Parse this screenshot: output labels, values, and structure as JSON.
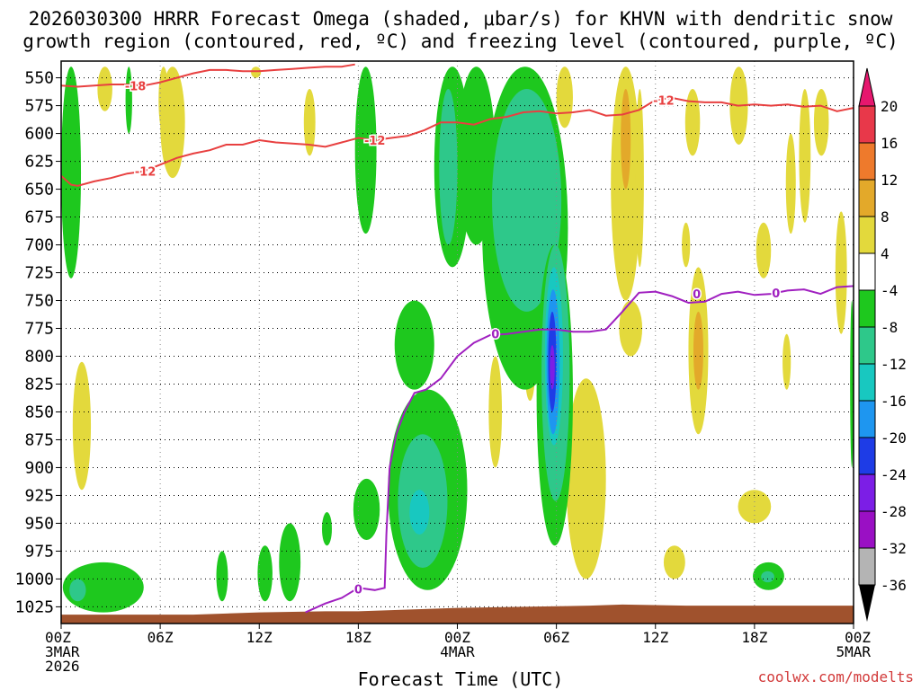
{
  "header": {
    "title_line1": "2026030300 HRRR Forecast Omega (shaded, μbar/s) for KHVN with dendritic snow",
    "title_line2": "growth region (contoured, red, ºC) and freezing level (contoured, purple, ºC)"
  },
  "footer": {
    "xlabel": "Forecast Time (UTC)",
    "credit": "coolwx.com/modelts"
  },
  "chart_data": {
    "type": "heatmap",
    "title": "2026030300 HRRR Forecast Omega (shaded, μbar/s) for KHVN with dendritic snow growth region (contoured, red, ºC) and freezing level (contoured, purple, ºC)",
    "xlabel": "Forecast Time (UTC)",
    "ylabel": "",
    "x_unit": "forecast hour",
    "x_range": [
      0,
      48
    ],
    "y_unit": "hPa",
    "y_range": [
      1040,
      535
    ],
    "y_ticks": [
      550,
      575,
      600,
      625,
      650,
      675,
      700,
      725,
      750,
      775,
      800,
      825,
      850,
      875,
      900,
      925,
      950,
      975,
      1000,
      1025
    ],
    "x_ticks": [
      {
        "hour": 0,
        "lines": [
          "00Z",
          "3MAR",
          "2026"
        ]
      },
      {
        "hour": 6,
        "lines": [
          "06Z"
        ]
      },
      {
        "hour": 12,
        "lines": [
          "12Z"
        ]
      },
      {
        "hour": 18,
        "lines": [
          "18Z"
        ]
      },
      {
        "hour": 24,
        "lines": [
          "00Z",
          "4MAR"
        ]
      },
      {
        "hour": 30,
        "lines": [
          "06Z"
        ]
      },
      {
        "hour": 36,
        "lines": [
          "12Z"
        ]
      },
      {
        "hour": 42,
        "lines": [
          "18Z"
        ]
      },
      {
        "hour": 48,
        "lines": [
          "00Z",
          "5MAR"
        ]
      }
    ],
    "grid": true,
    "colorbar": {
      "labels": [
        "20",
        "16",
        "12",
        "8",
        "4",
        "-4",
        "-8",
        "-12",
        "-16",
        "-20",
        "-24",
        "-28",
        "-32",
        "-36"
      ],
      "colors": [
        "#e8384a",
        "#ee7a2c",
        "#e3a92a",
        "#e3d93c",
        "#ffffff",
        "#1ec81e",
        "#2ec88a",
        "#18c8c0",
        "#1e96f0",
        "#1e3ce6",
        "#7c1ee6",
        "#9a10c4",
        "#b4b4b4"
      ],
      "top_arrow_color": "#e6176e",
      "bottom_arrow_color": "#000000"
    },
    "omega_regions": [
      {
        "color": "#1ec81e",
        "x": [
          0,
          1.2
        ],
        "y": [
          540,
          730
        ]
      },
      {
        "color": "#1ec81e",
        "x": [
          0.1,
          5
        ],
        "y": [
          985,
          1030
        ]
      },
      {
        "color": "#2ec88a",
        "x": [
          0.5,
          1.5
        ],
        "y": [
          1000,
          1020
        ]
      },
      {
        "color": "#1ec81e",
        "x": [
          3.9,
          4.3
        ],
        "y": [
          540,
          600
        ]
      },
      {
        "color": "#1ec81e",
        "x": [
          9.4,
          10.1
        ],
        "y": [
          975,
          1020
        ]
      },
      {
        "color": "#1ec81e",
        "x": [
          11.9,
          12.8
        ],
        "y": [
          970,
          1020
        ]
      },
      {
        "color": "#1ec81e",
        "x": [
          13.2,
          14.5
        ],
        "y": [
          950,
          1020
        ]
      },
      {
        "color": "#1ec81e",
        "x": [
          15.8,
          16.4
        ],
        "y": [
          940,
          970
        ]
      },
      {
        "color": "#1ec81e",
        "x": [
          17.8,
          19.1
        ],
        "y": [
          540,
          690
        ]
      },
      {
        "color": "#1ec81e",
        "x": [
          17.7,
          19.3
        ],
        "y": [
          910,
          965
        ]
      },
      {
        "color": "#1ec81e",
        "x": [
          20.2,
          22.6
        ],
        "y": [
          750,
          830
        ]
      },
      {
        "color": "#1ec81e",
        "x": [
          19.8,
          24.6
        ],
        "y": [
          830,
          1010
        ]
      },
      {
        "color": "#2ec88a",
        "x": [
          20.4,
          23.4
        ],
        "y": [
          870,
          990
        ]
      },
      {
        "color": "#18c8c0",
        "x": [
          21.1,
          22.3
        ],
        "y": [
          920,
          960
        ]
      },
      {
        "color": "#1ec81e",
        "x": [
          22.6,
          24.8
        ],
        "y": [
          540,
          720
        ]
      },
      {
        "color": "#2ec88a",
        "x": [
          22.9,
          24.0
        ],
        "y": [
          560,
          700
        ]
      },
      {
        "color": "#1ec81e",
        "x": [
          24.0,
          26.3
        ],
        "y": [
          540,
          700
        ]
      },
      {
        "color": "#1ec81e",
        "x": [
          25.5,
          30.7
        ],
        "y": [
          540,
          830
        ]
      },
      {
        "color": "#2ec88a",
        "x": [
          26.1,
          30.3
        ],
        "y": [
          560,
          760
        ]
      },
      {
        "color": "#1ec81e",
        "x": [
          28.8,
          31.0
        ],
        "y": [
          700,
          970
        ]
      },
      {
        "color": "#2ec88a",
        "x": [
          29.1,
          30.8
        ],
        "y": [
          700,
          930
        ]
      },
      {
        "color": "#18c8c0",
        "x": [
          29.3,
          30.4
        ],
        "y": [
          720,
          880
        ]
      },
      {
        "color": "#1e96f0",
        "x": [
          29.4,
          30.2
        ],
        "y": [
          740,
          870
        ]
      },
      {
        "color": "#1e3ce6",
        "x": [
          29.5,
          30.0
        ],
        "y": [
          760,
          850
        ]
      },
      {
        "color": "#7c1ee6",
        "x": [
          29.6,
          29.9
        ],
        "y": [
          790,
          830
        ]
      },
      {
        "color": "#1ec81e",
        "x": [
          41.9,
          43.8
        ],
        "y": [
          985,
          1010
        ]
      },
      {
        "color": "#2ec88a",
        "x": [
          42.4,
          43.2
        ],
        "y": [
          993,
          1003
        ]
      },
      {
        "color": "#1ec81e",
        "x": [
          47.8,
          48
        ],
        "y": [
          750,
          900
        ]
      }
    ],
    "positive_regions": [
      {
        "color": "#e3d93c",
        "x": [
          2.2,
          3.1
        ],
        "y": [
          540,
          580
        ]
      },
      {
        "color": "#e3d93c",
        "x": [
          0.7,
          1.8
        ],
        "y": [
          805,
          920
        ]
      },
      {
        "color": "#e3d93c",
        "x": [
          5.9,
          6.5
        ],
        "y": [
          540,
          600
        ]
      },
      {
        "color": "#e3d93c",
        "x": [
          6.0,
          7.5
        ],
        "y": [
          540,
          640
        ]
      },
      {
        "color": "#e3d93c",
        "x": [
          11.5,
          12.1
        ],
        "y": [
          540,
          550
        ]
      },
      {
        "color": "#e3d93c",
        "x": [
          14.7,
          15.4
        ],
        "y": [
          560,
          620
        ]
      },
      {
        "color": "#e3d93c",
        "x": [
          25.9,
          26.7
        ],
        "y": [
          800,
          900
        ]
      },
      {
        "color": "#e3d93c",
        "x": [
          28.1,
          28.7
        ],
        "y": [
          790,
          840
        ]
      },
      {
        "color": "#e3d93c",
        "x": [
          30.0,
          31.0
        ],
        "y": [
          540,
          595
        ]
      },
      {
        "color": "#e3d93c",
        "x": [
          30.6,
          33.0
        ],
        "y": [
          820,
          1000
        ]
      },
      {
        "color": "#e3d93c",
        "x": [
          33.3,
          35.1
        ],
        "y": [
          540,
          750
        ]
      },
      {
        "color": "#e3a92a",
        "x": [
          33.9,
          34.5
        ],
        "y": [
          560,
          650
        ]
      },
      {
        "color": "#e3d93c",
        "x": [
          33.8,
          35.2
        ],
        "y": [
          750,
          800
        ]
      },
      {
        "color": "#e3d93c",
        "x": [
          34.8,
          35.3
        ],
        "y": [
          560,
          720
        ]
      },
      {
        "color": "#e3d93c",
        "x": [
          37.8,
          38.7
        ],
        "y": [
          560,
          620
        ]
      },
      {
        "color": "#e3d93c",
        "x": [
          37.6,
          38.1
        ],
        "y": [
          680,
          720
        ]
      },
      {
        "color": "#e3d93c",
        "x": [
          36.5,
          37.8
        ],
        "y": [
          970,
          1000
        ]
      },
      {
        "color": "#e3d93c",
        "x": [
          38.0,
          39.2
        ],
        "y": [
          720,
          870
        ]
      },
      {
        "color": "#e3a92a",
        "x": [
          38.3,
          38.9
        ],
        "y": [
          760,
          830
        ]
      },
      {
        "color": "#e3d93c",
        "x": [
          40.5,
          41.6
        ],
        "y": [
          540,
          610
        ]
      },
      {
        "color": "#e3d93c",
        "x": [
          42.1,
          43.0
        ],
        "y": [
          680,
          730
        ]
      },
      {
        "color": "#e3d93c",
        "x": [
          41.0,
          43.0
        ],
        "y": [
          920,
          950
        ]
      },
      {
        "color": "#e3d93c",
        "x": [
          43.9,
          44.5
        ],
        "y": [
          600,
          690
        ]
      },
      {
        "color": "#e3d93c",
        "x": [
          44.7,
          45.4
        ],
        "y": [
          560,
          680
        ]
      },
      {
        "color": "#e3d93c",
        "x": [
          45.6,
          46.5
        ],
        "y": [
          560,
          620
        ]
      },
      {
        "color": "#e3d93c",
        "x": [
          43.7,
          44.2
        ],
        "y": [
          780,
          830
        ]
      },
      {
        "color": "#e3d93c",
        "x": [
          46.9,
          47.6
        ],
        "y": [
          670,
          780
        ]
      }
    ],
    "terrain": {
      "color": "#a0522d",
      "hours": [
        0,
        8,
        10,
        12,
        16,
        18,
        20,
        24,
        28,
        32,
        34,
        36,
        38,
        40,
        44,
        48
      ],
      "top_pressure": [
        1032,
        1032,
        1031,
        1030,
        1029,
        1029,
        1028,
        1026,
        1025,
        1024,
        1023,
        1023.5,
        1024,
        1024,
        1024,
        1024
      ]
    },
    "contours": [
      {
        "name": "-18",
        "color": "#e84040",
        "label": "-18",
        "label_at": [
          4.5,
          557
        ],
        "points": [
          [
            0,
            557
          ],
          [
            1,
            558
          ],
          [
            2,
            557
          ],
          [
            3,
            556
          ],
          [
            4,
            556
          ],
          [
            5,
            557
          ],
          [
            6,
            554
          ],
          [
            7,
            550
          ],
          [
            8,
            546
          ],
          [
            9,
            543
          ],
          [
            10,
            543
          ],
          [
            11,
            544
          ],
          [
            12,
            544
          ],
          [
            13,
            543
          ],
          [
            14,
            542
          ],
          [
            15,
            541
          ],
          [
            16,
            540
          ],
          [
            17,
            540
          ],
          [
            17.8,
            538
          ]
        ]
      },
      {
        "name": "-12 (left)",
        "color": "#e84040",
        "label": "-12",
        "label_at": [
          5.1,
          634
        ],
        "points": [
          [
            0,
            638
          ],
          [
            0.6,
            646
          ],
          [
            1,
            647
          ],
          [
            2,
            643
          ],
          [
            3,
            640
          ],
          [
            4,
            636
          ],
          [
            5,
            634
          ],
          [
            6,
            628
          ],
          [
            7,
            622
          ],
          [
            8,
            618
          ],
          [
            9,
            615
          ],
          [
            10,
            610
          ],
          [
            11,
            610
          ],
          [
            12,
            606
          ],
          [
            13,
            608
          ],
          [
            14,
            609
          ],
          [
            15,
            610
          ],
          [
            16,
            612
          ],
          [
            17,
            608
          ],
          [
            18,
            604
          ],
          [
            19,
            606
          ],
          [
            20,
            604
          ],
          [
            21,
            602
          ],
          [
            22,
            597
          ],
          [
            23,
            590
          ],
          [
            24,
            590
          ],
          [
            25,
            592
          ],
          [
            26,
            587
          ],
          [
            27,
            585
          ],
          [
            28,
            581
          ],
          [
            29,
            580
          ],
          [
            30,
            582
          ],
          [
            31,
            581
          ],
          [
            32,
            579
          ],
          [
            33,
            584
          ],
          [
            34,
            583
          ],
          [
            35,
            579
          ],
          [
            36,
            570
          ],
          [
            37,
            568
          ],
          [
            38,
            571
          ],
          [
            39,
            572
          ],
          [
            40,
            572
          ],
          [
            41,
            575
          ],
          [
            42,
            574
          ],
          [
            43,
            575
          ],
          [
            44,
            574
          ],
          [
            45,
            576
          ],
          [
            46,
            575
          ],
          [
            47,
            580
          ],
          [
            48,
            577
          ]
        ]
      },
      {
        "name": "-12 (right)",
        "color": "#e84040",
        "label": "-12",
        "label_at": [
          36.5,
          570
        ],
        "points": []
      },
      {
        "name": "-12 (mid)",
        "color": "#e84040",
        "label": "-12",
        "label_at": [
          19.0,
          606
        ],
        "points": []
      },
      {
        "name": "0",
        "color": "#a020c0",
        "label": "0",
        "label_at": [
          17.0,
          1009
        ],
        "points": [
          [
            14.8,
            1030
          ],
          [
            16,
            1022
          ],
          [
            17,
            1017
          ],
          [
            18,
            1008
          ],
          [
            19,
            1010
          ],
          [
            19.6,
            1008
          ],
          [
            19.7,
            960
          ],
          [
            19.9,
            900
          ],
          [
            20.3,
            870
          ],
          [
            20.8,
            850
          ],
          [
            21.4,
            833
          ],
          [
            22.1,
            830
          ],
          [
            23.0,
            820
          ],
          [
            24.0,
            800
          ],
          [
            25.0,
            788
          ],
          [
            26.0,
            781
          ],
          [
            27.0,
            780
          ],
          [
            28.0,
            778
          ],
          [
            29.0,
            776
          ],
          [
            30.0,
            776
          ],
          [
            31.0,
            778
          ],
          [
            32.0,
            778
          ],
          [
            33.0,
            776
          ],
          [
            34.0,
            760
          ],
          [
            35.0,
            743
          ],
          [
            36.0,
            742
          ],
          [
            37.0,
            746
          ],
          [
            38.0,
            752
          ],
          [
            39.0,
            751
          ],
          [
            40.0,
            744
          ],
          [
            41.0,
            742
          ],
          [
            42.0,
            745
          ],
          [
            43.0,
            744
          ],
          [
            44.0,
            741
          ],
          [
            45.0,
            740
          ],
          [
            46.0,
            744
          ],
          [
            47.0,
            738
          ],
          [
            48.0,
            737
          ]
        ],
        "labels": [
          [
            18.0,
            1009
          ],
          [
            26.3,
            780
          ],
          [
            38.5,
            744
          ],
          [
            43.3,
            743
          ]
        ]
      }
    ]
  }
}
